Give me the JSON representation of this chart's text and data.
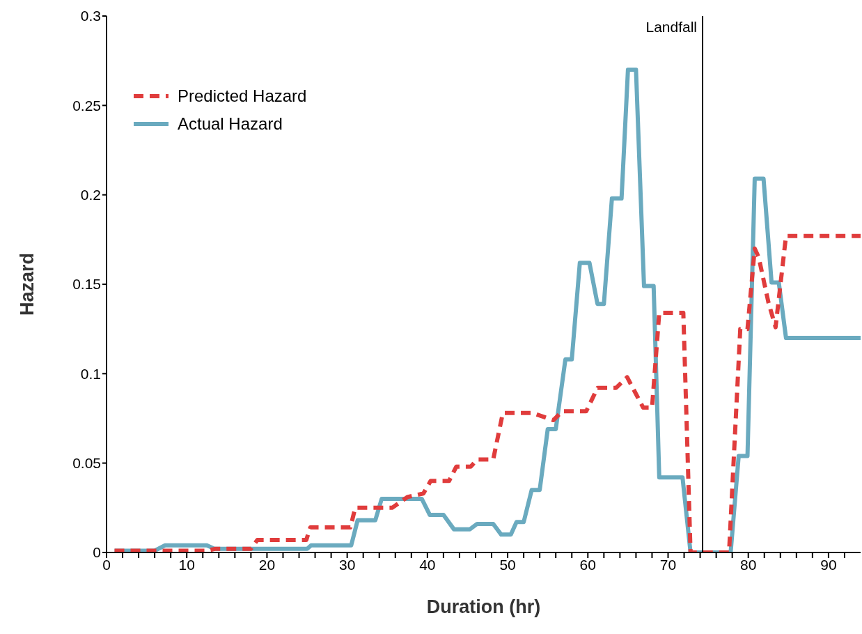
{
  "chart_data": {
    "type": "line",
    "xlabel": "Duration (hr)",
    "ylabel": "Hazard",
    "xlim": [
      0,
      94
    ],
    "ylim": [
      0,
      0.3
    ],
    "xticks": [
      0,
      {
        "value": 2,
        "label": null
      },
      {
        "value": 4,
        "label": null
      },
      {
        "value": 6,
        "label": null
      },
      {
        "value": 8,
        "label": null
      },
      10,
      {
        "value": 12,
        "label": null
      },
      {
        "value": 14,
        "label": null
      },
      {
        "value": 16,
        "label": null
      },
      {
        "value": 18,
        "label": null
      },
      20,
      {
        "value": 22,
        "label": null
      },
      {
        "value": 24,
        "label": null
      },
      {
        "value": 26,
        "label": null
      },
      {
        "value": 28,
        "label": null
      },
      30,
      {
        "value": 32,
        "label": null
      },
      {
        "value": 34,
        "label": null
      },
      {
        "value": 36,
        "label": null
      },
      {
        "value": 38,
        "label": null
      },
      40,
      {
        "value": 42,
        "label": null
      },
      {
        "value": 44,
        "label": null
      },
      {
        "value": 46,
        "label": null
      },
      {
        "value": 48,
        "label": null
      },
      50,
      {
        "value": 52,
        "label": null
      },
      {
        "value": 54,
        "label": null
      },
      {
        "value": 56,
        "label": null
      },
      {
        "value": 58,
        "label": null
      },
      60,
      {
        "value": 62,
        "label": null
      },
      {
        "value": 64,
        "label": null
      },
      {
        "value": 66,
        "label": null
      },
      {
        "value": 68,
        "label": null
      },
      70,
      {
        "value": 72,
        "label": null
      },
      {
        "value": 74,
        "label": null
      },
      {
        "value": 76,
        "label": null
      },
      {
        "value": 78,
        "label": null
      },
      80,
      {
        "value": 82,
        "label": null
      },
      {
        "value": 84,
        "label": null
      },
      {
        "value": 86,
        "label": null
      },
      {
        "value": 88,
        "label": null
      },
      90,
      {
        "value": 92,
        "label": null
      }
    ],
    "yticks": [
      0,
      0.05,
      0.1,
      0.15,
      0.2,
      0.25,
      0.3
    ],
    "grid": false,
    "legend": "top left",
    "marker": "none",
    "ref_lines": [
      {
        "axis": "x",
        "value": 74.3,
        "label": "Landfall",
        "color": "#000000"
      }
    ],
    "series": [
      {
        "name": "Predicted Hazard",
        "color": "#e03c3c",
        "line_style": "dashed",
        "x": [
          1,
          12.5,
          13.5,
          18,
          18.8,
          24.9,
          25.4,
          30.4,
          31,
          35.6,
          37.5,
          39.5,
          40.4,
          42.7,
          43.6,
          45.4,
          46.2,
          48.2,
          49.4,
          53.1,
          55.7,
          56.8,
          59.8,
          61.2,
          63.5,
          64.9,
          66.9,
          68,
          68.9,
          71.9,
          72.8,
          77.6,
          79,
          79.9,
          80.8,
          81.3,
          82.5,
          83.4,
          84.7,
          94
        ],
        "values": [
          0.001,
          0.001,
          0.002,
          0.002,
          0.007,
          0.007,
          0.014,
          0.014,
          0.025,
          0.025,
          0.031,
          0.033,
          0.04,
          0.04,
          0.048,
          0.048,
          0.052,
          0.052,
          0.078,
          0.078,
          0.074,
          0.079,
          0.079,
          0.092,
          0.092,
          0.098,
          0.081,
          0.081,
          0.134,
          0.134,
          0,
          0,
          0.125,
          0.125,
          0.17,
          0.165,
          0.14,
          0.126,
          0.177,
          0.177
        ]
      },
      {
        "name": "Actual Hazard",
        "color": "#6aaabf",
        "line_style": "solid",
        "x": [
          1,
          6,
          7.3,
          12.5,
          13.5,
          25,
          25.5,
          30.5,
          31.3,
          33.5,
          34.3,
          39.3,
          40.3,
          42,
          43.3,
          45.3,
          46.2,
          48.2,
          49.2,
          50.4,
          51.1,
          52,
          53,
          54,
          55,
          56,
          57.2,
          58,
          59,
          60.2,
          61.2,
          62,
          63,
          64.2,
          65,
          66,
          67,
          68.2,
          68.9,
          71.8,
          72.8,
          77.8,
          78.8,
          79.9,
          80.8,
          81.9,
          82.9,
          83.8,
          84.7,
          94
        ],
        "values": [
          0.001,
          0.001,
          0.004,
          0.004,
          0.002,
          0.002,
          0.004,
          0.004,
          0.018,
          0.018,
          0.03,
          0.03,
          0.021,
          0.021,
          0.013,
          0.013,
          0.016,
          0.016,
          0.01,
          0.01,
          0.017,
          0.017,
          0.035,
          0.035,
          0.069,
          0.069,
          0.108,
          0.108,
          0.162,
          0.162,
          0.139,
          0.139,
          0.198,
          0.198,
          0.27,
          0.27,
          0.149,
          0.149,
          0.042,
          0.042,
          0,
          0,
          0.054,
          0.054,
          0.209,
          0.209,
          0.151,
          0.151,
          0.12,
          0.12
        ]
      }
    ]
  }
}
